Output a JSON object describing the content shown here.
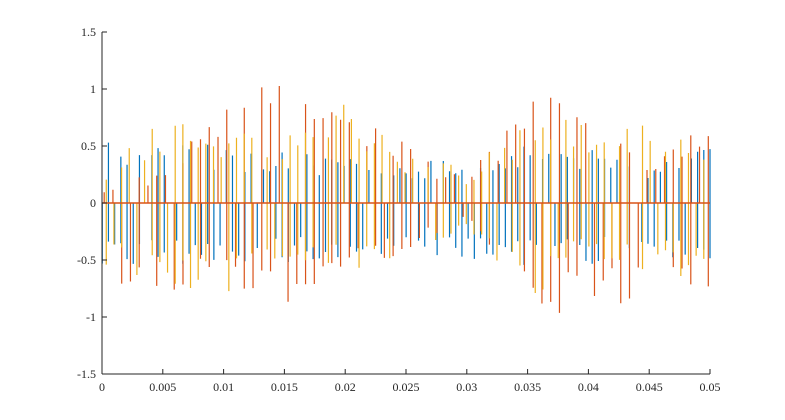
{
  "chart_data": {
    "type": "line",
    "title": "",
    "xlabel": "",
    "ylabel": "",
    "xlim": [
      0,
      0.05
    ],
    "ylim": [
      -1.5,
      1.5
    ],
    "x_ticks": [
      0,
      0.005,
      0.01,
      0.015,
      0.02,
      0.025,
      0.03,
      0.035,
      0.04,
      0.045,
      0.05
    ],
    "x_tick_labels": [
      "0",
      "0.005",
      "0.01",
      "0.015",
      "0.02",
      "0.025",
      "0.03",
      "0.035",
      "0.04",
      "0.045",
      "0.05"
    ],
    "y_ticks": [
      -1.5,
      -1,
      -0.5,
      0,
      0.5,
      1,
      1.5
    ],
    "y_tick_labels": [
      "-1.5",
      "-1",
      "-0.5",
      "0",
      "0.5",
      "1",
      "1.5"
    ],
    "grid": false,
    "legend": "none",
    "series": [
      {
        "color": "#0072BD",
        "x": [
          0.0,
          0.005,
          0.01,
          0.015,
          0.02,
          0.025,
          0.03,
          0.035,
          0.04,
          0.045,
          0.05
        ],
        "values": [
          0.55,
          0.58,
          0.5,
          0.45,
          0.4,
          0.38,
          0.42,
          0.58,
          0.52,
          0.38,
          0.48
        ],
        "min_values": [
          -0.55,
          -0.58,
          -0.5,
          -0.55,
          -0.5,
          -0.42,
          -0.5,
          -0.58,
          -0.55,
          -0.5,
          -0.55
        ]
      },
      {
        "color": "#D95319",
        "x": [
          0.0,
          0.005,
          0.01,
          0.015,
          0.02,
          0.025,
          0.03,
          0.035,
          0.04,
          0.045,
          0.05
        ],
        "values": [
          0.15,
          0.3,
          1.05,
          1.05,
          1.05,
          0.55,
          0.2,
          1.0,
          0.95,
          0.3,
          0.92
        ],
        "min_values": [
          -0.82,
          -0.85,
          -0.75,
          -0.95,
          -0.7,
          -0.5,
          -0.15,
          -1.0,
          -1.02,
          -0.95,
          -1.03
        ]
      },
      {
        "color": "#EDB120",
        "x": [
          0.0,
          0.005,
          0.01,
          0.015,
          0.02,
          0.025,
          0.03,
          0.035,
          0.04,
          0.045,
          0.05
        ],
        "values": [
          0.25,
          0.78,
          0.7,
          0.6,
          0.88,
          0.45,
          0.3,
          0.8,
          0.75,
          0.85,
          0.35
        ],
        "min_values": [
          -0.6,
          -0.75,
          -0.8,
          -0.7,
          -0.65,
          -0.5,
          -0.2,
          -0.85,
          -0.5,
          -0.7,
          -0.6
        ]
      }
    ]
  }
}
